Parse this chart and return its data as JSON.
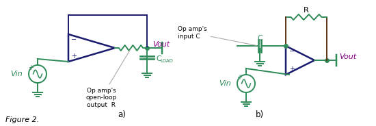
{
  "fig_width": 5.5,
  "fig_height": 1.84,
  "dpi": 100,
  "bg_color": "#ffffff",
  "green_color": "#2e8b57",
  "navy_color": "#1a1a6e",
  "purple_color": "#800080",
  "brown_color": "#5c3317",
  "gray_color": "#aaaaaa",
  "figure_label": "Figure 2.",
  "label_a": "a)",
  "label_b": "b)",
  "vout_a": "Vout",
  "vout_b": "Vout",
  "vin_label": "Vin",
  "annotation_a": "Op amp's\nopen-loop\noutput  R",
  "annotation_b": "Op amp's\ninput C",
  "r_label_b": "R",
  "c_label_b": "C",
  "cload_c": "C",
  "cload_sub": "LOAD"
}
